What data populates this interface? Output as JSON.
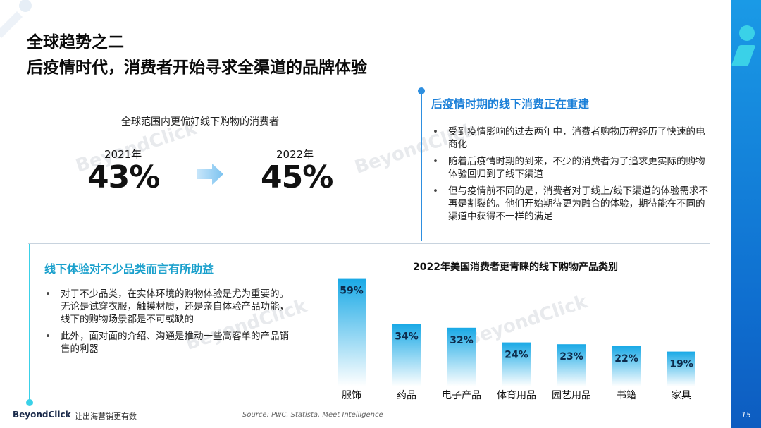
{
  "header": {
    "title_line1": "全球趋势之二",
    "title_line2": "后疫情时代，消费者开始寻求全渠道的品牌体验"
  },
  "stats": {
    "caption": "全球范围内更偏好线下购物的消费者",
    "items": [
      {
        "year": "2021年",
        "value": "43%"
      },
      {
        "year": "2022年",
        "value": "45%"
      }
    ]
  },
  "right_panel": {
    "heading": "后疫情时期的线下消费正在重建",
    "bullets": [
      "受到疫情影响的过去两年中，消费者购物历程经历了快速的电商化",
      "随着后疫情时期的到来，不少的消费者为了追求更实际的购物体验回归到了线下渠道",
      "但与疫情前不同的是，消费者对于线上/线下渠道的体验需求不再是割裂的。他们开始期待更为融合的体验，期待能在不同的渠道中获得不一样的满足"
    ]
  },
  "left_panel": {
    "heading": "线下体验对不少品类而言有所助益",
    "bullets": [
      "对于不少品类，在实体环境的购物体验是尤为重要的。无论是试穿衣服，触摸材质，还是亲自体验产品功能，线下的购物场景都是不可或缺的",
      "此外，面对面的介绍、沟通是推动一些高客单的产品销售的利器"
    ]
  },
  "chart_data": {
    "type": "bar",
    "title": "2022年美国消费者更青睐的线下购物产品类别",
    "categories": [
      "服饰",
      "药品",
      "电子产品",
      "体育用品",
      "园艺用品",
      "书籍",
      "家具"
    ],
    "values": [
      59,
      34,
      32,
      24,
      23,
      22,
      19
    ],
    "value_labels": [
      "59%",
      "34%",
      "32%",
      "24%",
      "23%",
      "22%",
      "19%"
    ],
    "ylim": [
      0,
      60
    ],
    "xlabel": "",
    "ylabel": "",
    "grid": false,
    "colors": {
      "bar_top": "#19a9e6",
      "bar_bottom": "#ffffff",
      "label": "#0d2a4a"
    }
  },
  "footer": {
    "logo": "BeyondClick",
    "slogan": "让出海营销更有数",
    "source": "Source: PwC, Statista, Meet Intelligence",
    "page_number": "15"
  },
  "watermark": {
    "text": "BeyondClick"
  },
  "colors": {
    "accent_blue": "#1a7fd8",
    "accent_cyan": "#3ad1e8",
    "band": "#0f6fd0"
  }
}
